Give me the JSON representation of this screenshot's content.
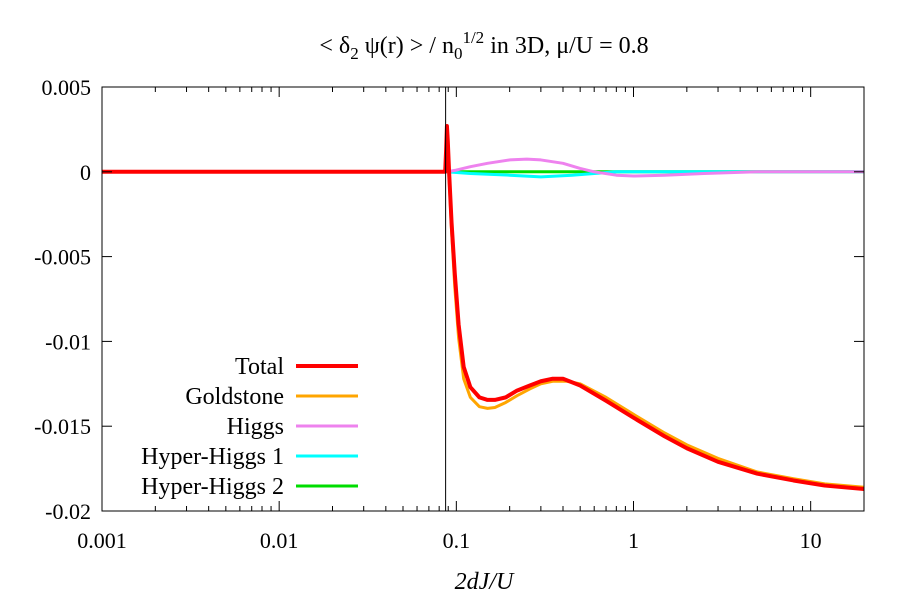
{
  "chart_data": {
    "type": "line",
    "title": {
      "prefix": "< ",
      "delta": "δ",
      "delta_sub": "2",
      "psi": " ψ",
      "psi_rest": "(r) > / n",
      "n_sub": "0",
      "n_sup": "1/2",
      "suffix_pre": " in 3D, ",
      "mu": "μ",
      "suffix_post": "/U = 0.8"
    },
    "xlabel": "2dJ/U",
    "ylabel": "",
    "xscale": "log",
    "xlim": [
      0.001,
      20
    ],
    "ylim": [
      -0.02,
      0.005
    ],
    "x_ticks": [
      {
        "value": 0.001,
        "label": "0.001"
      },
      {
        "value": 0.01,
        "label": "0.01"
      },
      {
        "value": 0.1,
        "label": "0.1"
      },
      {
        "value": 1,
        "label": "1"
      },
      {
        "value": 10,
        "label": "10"
      }
    ],
    "y_ticks": [
      {
        "value": 0.005,
        "label": "0.005"
      },
      {
        "value": 0,
        "label": "0"
      },
      {
        "value": -0.005,
        "label": "-0.005"
      },
      {
        "value": -0.01,
        "label": "-0.01"
      },
      {
        "value": -0.015,
        "label": "-0.015"
      },
      {
        "value": -0.02,
        "label": "-0.02"
      }
    ],
    "vertical_line_x": 0.087,
    "legend_position": "bottom-left",
    "series": [
      {
        "name": "Total",
        "color": "#ff0000",
        "width": 4,
        "points": [
          [
            0.001,
            0
          ],
          [
            0.0865,
            0
          ],
          [
            0.0875,
            0.0012
          ],
          [
            0.0885,
            0.0027
          ],
          [
            0.0895,
            0.0018
          ],
          [
            0.091,
            0.0
          ],
          [
            0.094,
            -0.003
          ],
          [
            0.098,
            -0.006
          ],
          [
            0.103,
            -0.009
          ],
          [
            0.11,
            -0.0115
          ],
          [
            0.12,
            -0.0127
          ],
          [
            0.135,
            -0.0133
          ],
          [
            0.15,
            -0.01345
          ],
          [
            0.165,
            -0.01345
          ],
          [
            0.19,
            -0.0133
          ],
          [
            0.22,
            -0.0129
          ],
          [
            0.26,
            -0.0126
          ],
          [
            0.3,
            -0.01235
          ],
          [
            0.35,
            -0.0122
          ],
          [
            0.4,
            -0.0122
          ],
          [
            0.5,
            -0.0126
          ],
          [
            0.7,
            -0.0135
          ],
          [
            1.0,
            -0.0145
          ],
          [
            1.5,
            -0.0156
          ],
          [
            2.0,
            -0.0163
          ],
          [
            3.0,
            -0.0171
          ],
          [
            5.0,
            -0.0178
          ],
          [
            8.0,
            -0.0182
          ],
          [
            12.0,
            -0.0185
          ],
          [
            20.0,
            -0.0187
          ]
        ]
      },
      {
        "name": "Goldstone",
        "color": "#ffa500",
        "width": 3,
        "points": [
          [
            0.001,
            0
          ],
          [
            0.0865,
            0
          ],
          [
            0.0875,
            0.0012
          ],
          [
            0.0885,
            0.0027
          ],
          [
            0.0895,
            0.0016
          ],
          [
            0.091,
            -0.0003
          ],
          [
            0.094,
            -0.0035
          ],
          [
            0.098,
            -0.0068
          ],
          [
            0.103,
            -0.0098
          ],
          [
            0.11,
            -0.0122
          ],
          [
            0.12,
            -0.0133
          ],
          [
            0.135,
            -0.01385
          ],
          [
            0.15,
            -0.01395
          ],
          [
            0.165,
            -0.0139
          ],
          [
            0.19,
            -0.0136
          ],
          [
            0.22,
            -0.0132
          ],
          [
            0.26,
            -0.0128
          ],
          [
            0.3,
            -0.0125
          ],
          [
            0.35,
            -0.01235
          ],
          [
            0.42,
            -0.01235
          ],
          [
            0.5,
            -0.0125
          ],
          [
            0.7,
            -0.0133
          ],
          [
            1.0,
            -0.0143
          ],
          [
            1.5,
            -0.0154
          ],
          [
            2.0,
            -0.0161
          ],
          [
            3.0,
            -0.0169
          ],
          [
            5.0,
            -0.0177
          ],
          [
            8.0,
            -0.0181
          ],
          [
            12.0,
            -0.0184
          ],
          [
            20.0,
            -0.0186
          ]
        ]
      },
      {
        "name": "Higgs",
        "color": "#ee82ee",
        "width": 3,
        "points": [
          [
            0.001,
            0
          ],
          [
            0.088,
            0
          ],
          [
            0.1,
            0.0001
          ],
          [
            0.12,
            0.0003
          ],
          [
            0.15,
            0.0005
          ],
          [
            0.2,
            0.0007
          ],
          [
            0.25,
            0.00075
          ],
          [
            0.3,
            0.0007
          ],
          [
            0.4,
            0.0005
          ],
          [
            0.5,
            0.0002
          ],
          [
            0.6,
            0.0
          ],
          [
            0.8,
            -0.0002
          ],
          [
            1.0,
            -0.00025
          ],
          [
            1.5,
            -0.0002
          ],
          [
            2.5,
            -0.0001
          ],
          [
            5.0,
            0.0
          ],
          [
            20.0,
            0.0
          ]
        ]
      },
      {
        "name": "Hyper-Higgs 1",
        "color": "#00ffff",
        "width": 3,
        "points": [
          [
            0.001,
            0
          ],
          [
            0.088,
            0
          ],
          [
            0.12,
            -0.0001
          ],
          [
            0.2,
            -0.0002
          ],
          [
            0.3,
            -0.0003
          ],
          [
            0.45,
            -0.0002
          ],
          [
            0.6,
            -0.0001
          ],
          [
            0.8,
            0.0
          ],
          [
            20.0,
            0.0
          ]
        ]
      },
      {
        "name": "Hyper-Higgs 2",
        "color": "#00dd00",
        "width": 3,
        "points": [
          [
            0.001,
            0
          ],
          [
            0.085,
            0
          ],
          [
            0.088,
            0.0001
          ],
          [
            0.091,
            0.0
          ],
          [
            20.0,
            0.0
          ]
        ]
      }
    ]
  }
}
